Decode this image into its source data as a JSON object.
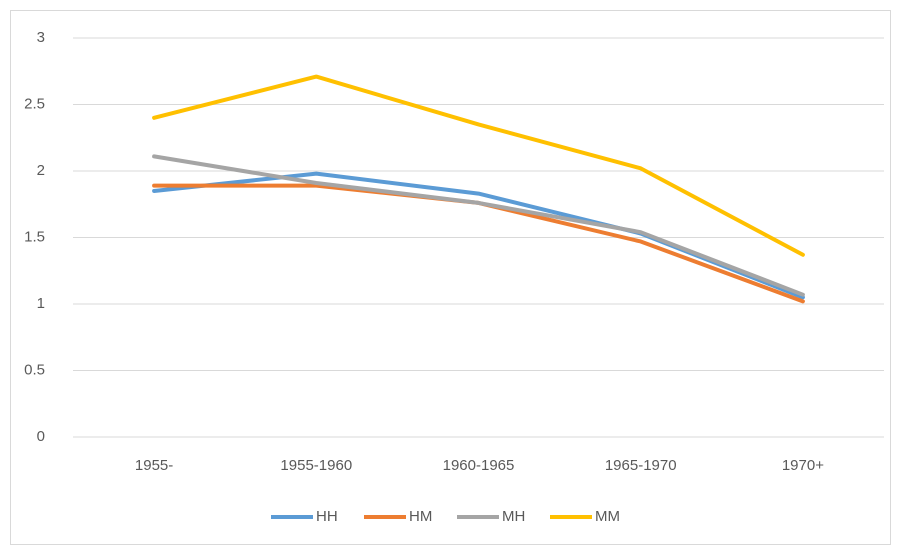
{
  "chart_data": {
    "type": "line",
    "categories": [
      "1955-",
      "1955-1960",
      "1960-1965",
      "1965-1970",
      "1970+"
    ],
    "series": [
      {
        "name": "HH",
        "color": "#5b9bd5",
        "values": [
          1.85,
          1.98,
          1.83,
          1.53,
          1.05
        ]
      },
      {
        "name": "HM",
        "color": "#ed7d31",
        "values": [
          1.89,
          1.89,
          1.76,
          1.47,
          1.02
        ]
      },
      {
        "name": "MH",
        "color": "#a5a5a5",
        "values": [
          2.11,
          1.91,
          1.76,
          1.54,
          1.07
        ]
      },
      {
        "name": "MM",
        "color": "#ffc000",
        "values": [
          2.4,
          2.71,
          2.35,
          2.02,
          1.37
        ]
      }
    ],
    "ylim": [
      0,
      3
    ],
    "yticks": [
      0,
      0.5,
      1,
      1.5,
      2,
      2.5,
      3
    ],
    "grid": true,
    "legend": "bottom"
  }
}
